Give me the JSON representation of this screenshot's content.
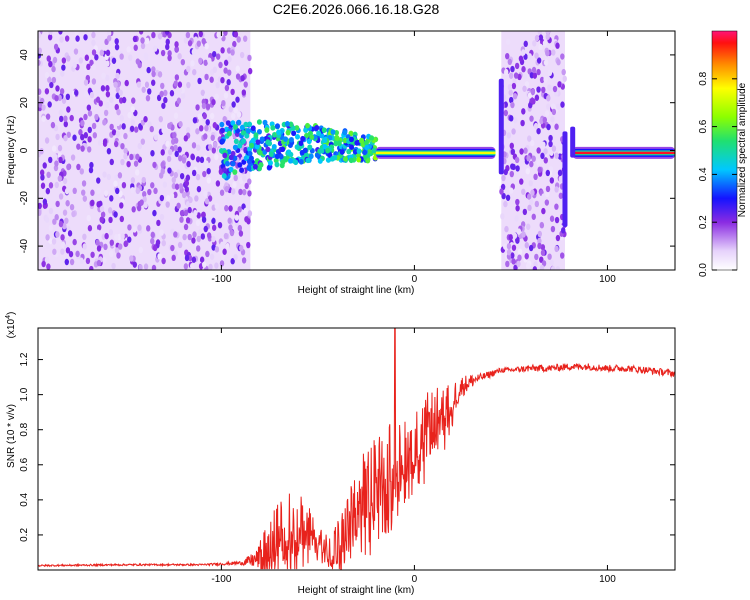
{
  "figure": {
    "title": "C2E6.2026.066.16.18.G28"
  },
  "chart_data": [
    {
      "type": "heatmap",
      "xlabel": "Height of straight line (km)",
      "ylabel": "Frequency (Hz)",
      "xlim": [
        -195,
        135
      ],
      "ylim": [
        -50,
        50
      ],
      "xticks": [
        -100,
        0,
        100
      ],
      "yticks": [
        -40,
        -20,
        0,
        20,
        40
      ],
      "colorbar": {
        "label": "Normalized spectral amplitude",
        "ticks": [
          0.0,
          0.2,
          0.4,
          0.6,
          0.8
        ],
        "range": [
          0,
          1
        ]
      },
      "regions": [
        {
          "description": "noise (purple speckle)",
          "x_range": [
            -195,
            -85
          ],
          "f_range": [
            -50,
            50
          ]
        },
        {
          "description": "signal onset, spread frequency",
          "x_range": [
            -100,
            -20
          ],
          "f_center": 0,
          "f_spread": 12
        },
        {
          "description": "narrow band near -1 Hz",
          "x_range": [
            -20,
            42
          ],
          "f_center": -1
        },
        {
          "description": "noise band (purple speckle)",
          "x_range": [
            45,
            78
          ],
          "f_range": [
            -50,
            50
          ]
        },
        {
          "description": "strong narrow band near -1 Hz",
          "x_range": [
            82,
            135
          ],
          "f_center": -1
        }
      ]
    },
    {
      "type": "line",
      "xlabel": "Height of straight line (km)",
      "ylabel": "SNR (10 * v/v)",
      "y_multiplier": "(x10",
      "y_multiplier_exp": "4",
      "xlim": [
        -195,
        135
      ],
      "ylim": [
        0,
        1.38
      ],
      "xticks": [
        -100,
        0,
        100
      ],
      "yticks": [
        0.2,
        0.4,
        0.6,
        0.8,
        1.0,
        1.2
      ],
      "series": [
        {
          "name": "SNR",
          "color": "#e8221c",
          "x": [
            -195,
            -150,
            -110,
            -90,
            -82,
            -75,
            -70,
            -65,
            -60,
            -55,
            -50,
            -45,
            -40,
            -35,
            -30,
            -25,
            -20,
            -15,
            -12,
            -10,
            -5,
            0,
            5,
            10,
            15,
            20,
            25,
            30,
            35,
            40,
            45,
            50,
            60,
            70,
            80,
            90,
            100,
            110,
            120,
            135
          ],
          "base": [
            0.025,
            0.03,
            0.03,
            0.04,
            0.06,
            0.12,
            0.2,
            0.25,
            0.26,
            0.22,
            0.15,
            0.12,
            0.14,
            0.2,
            0.35,
            0.45,
            0.52,
            0.58,
            0.6,
            0.62,
            0.66,
            0.72,
            0.8,
            0.86,
            0.9,
            0.98,
            1.05,
            1.08,
            1.1,
            1.12,
            1.14,
            1.14,
            1.15,
            1.15,
            1.16,
            1.16,
            1.15,
            1.15,
            1.14,
            1.12
          ],
          "noise": [
            0.005,
            0.005,
            0.005,
            0.01,
            0.05,
            0.18,
            0.2,
            0.2,
            0.2,
            0.15,
            0.1,
            0.1,
            0.15,
            0.2,
            0.25,
            0.25,
            0.25,
            0.25,
            0.25,
            0.22,
            0.2,
            0.18,
            0.2,
            0.18,
            0.15,
            0.1,
            0.06,
            0.04,
            0.02,
            0.02,
            0.015,
            0.015,
            0.02,
            0.02,
            0.02,
            0.02,
            0.02,
            0.02,
            0.02,
            0.02
          ]
        }
      ]
    }
  ]
}
